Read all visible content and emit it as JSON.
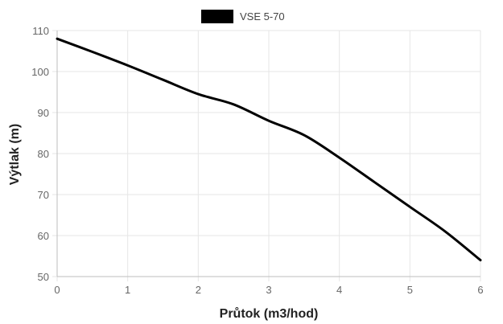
{
  "chart_data": {
    "type": "line",
    "xlabel": "Průtok (m3/hod)",
    "ylabel": "Výtlak (m)",
    "xlim": [
      0,
      6
    ],
    "ylim": [
      50,
      110
    ],
    "x_ticks": [
      0,
      1,
      2,
      3,
      4,
      5,
      6
    ],
    "y_ticks": [
      50,
      60,
      70,
      80,
      90,
      100,
      110
    ],
    "grid": true,
    "legend_position": "top-center",
    "series": [
      {
        "name": "VSE 5-70",
        "color": "#000000",
        "x": [
          0,
          0.5,
          1,
          1.5,
          2,
          2.5,
          3,
          3.5,
          4,
          4.5,
          5,
          5.5,
          6
        ],
        "y": [
          108,
          104.8,
          101.5,
          98,
          94.5,
          92,
          88,
          84.5,
          79,
          73,
          67,
          61,
          54
        ]
      }
    ]
  }
}
